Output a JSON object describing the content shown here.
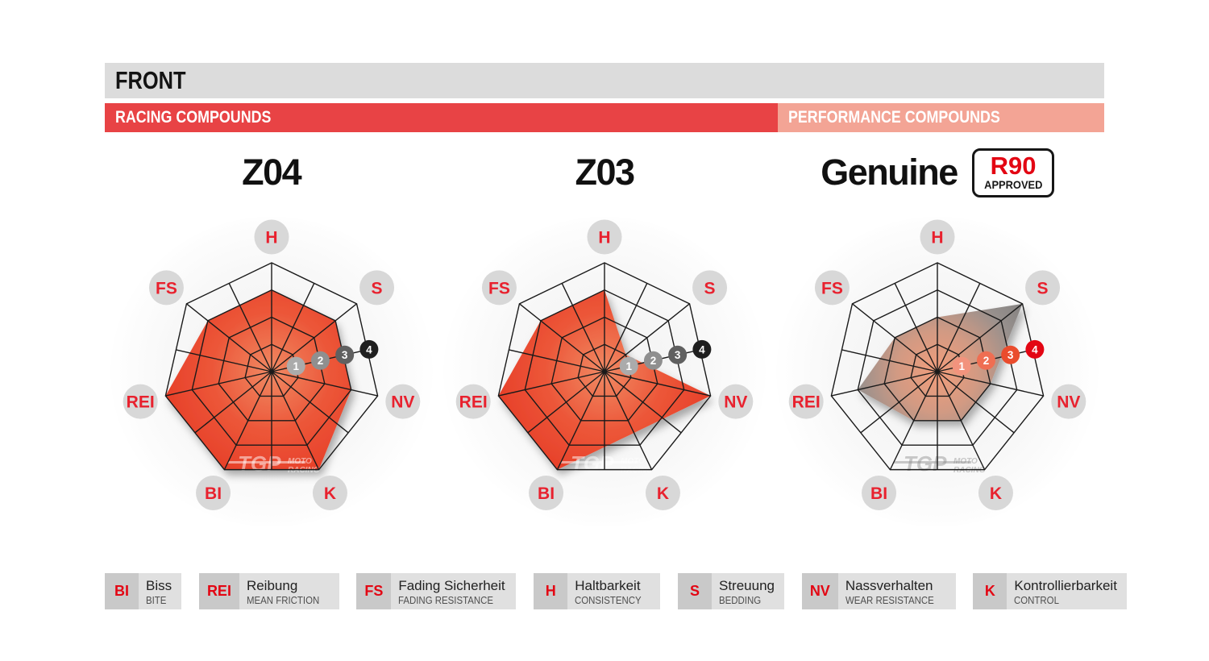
{
  "header": {
    "title": "FRONT"
  },
  "bands": {
    "racing": {
      "label": "RACING COMPOUNDS"
    },
    "performance": {
      "label": "PERFORMANCE COMPOUNDS"
    }
  },
  "badge": {
    "line1": "R90",
    "line2": "APPROVED"
  },
  "watermark": {
    "logo": "TGP",
    "moto": "MOTO",
    "racing": "RACING"
  },
  "colors": {
    "front_bar_bg": "#dcdcdc",
    "front_text": "#131313",
    "racing_bg": "#e84345",
    "performance_bg": "#f3a495",
    "band_text": "#ffffff",
    "badge_red": "#e30613",
    "badge_black": "#161616",
    "grid": "#1a1a1a",
    "label_circle_bg": "#d8d8d8",
    "label_text": "#e8212e",
    "legend_abbr_bg": "#c9c9c9",
    "legend_abbr_text": "#e30613",
    "legend_text_bg": "#e0e0e0"
  },
  "legend": {
    "items": [
      {
        "abbr": "BI",
        "de": "Biss",
        "en": "BITE"
      },
      {
        "abbr": "REI",
        "de": "Reibung",
        "en": "MEAN FRICTION"
      },
      {
        "abbr": "FS",
        "de": "Fading Sicherheit",
        "en": "FADING RESISTANCE"
      },
      {
        "abbr": "H",
        "de": "Haltbarkeit",
        "en": "CONSISTENCY"
      },
      {
        "abbr": "S",
        "de": "Streuung",
        "en": "BEDDING"
      },
      {
        "abbr": "NV",
        "de": "Nassverhalten",
        "en": "WEAR RESISTANCE"
      },
      {
        "abbr": "K",
        "de": "Kontrollierbarkeit",
        "en": "CONTROL"
      }
    ]
  },
  "chart_data": {
    "type": "radar",
    "axes": [
      "H",
      "S",
      "NV",
      "K",
      "BI",
      "REI",
      "FS"
    ],
    "axis_start_angle_deg": 90,
    "scale_min": 0,
    "scale_max": 4,
    "scale_ticks": [
      "1",
      "2",
      "3",
      "4"
    ],
    "grid": "on",
    "rings": 4,
    "charts": [
      {
        "title": "Z04",
        "group": "RACING COMPOUNDS",
        "values": [
          3,
          3,
          3,
          4,
          4,
          4,
          3
        ],
        "fill_stops": [
          "#f08a64",
          "#ec5638",
          "#e63a26"
        ],
        "tick_colors": [
          "#ababab",
          "#8f8f8f",
          "#606060",
          "#1f1f1f"
        ],
        "watermark_color": "rgba(255,255,255,0.5)"
      },
      {
        "title": "Z03",
        "group": "RACING COMPOUNDS",
        "values": [
          3,
          1,
          4,
          2.5,
          4,
          4,
          3
        ],
        "fill_stops": [
          "#f08a64",
          "#ec5638",
          "#e63a26"
        ],
        "tick_colors": [
          "#ababab",
          "#8f8f8f",
          "#606060",
          "#1f1f1f"
        ],
        "watermark_color": "rgba(255,255,255,0.5)"
      },
      {
        "title": "Genuine",
        "group": "PERFORMANCE COMPOUNDS",
        "badge": "R90 APPROVED",
        "values": [
          2,
          4,
          2,
          2,
          2,
          3,
          2
        ],
        "fill_stops": [
          "#f29d7b",
          "#d29a83",
          "#97908d",
          "#7c7c7c"
        ],
        "tick_colors": [
          "#f2937d",
          "#ef6e52",
          "#ea4c2d",
          "#e30613"
        ],
        "watermark_color": "rgba(140,140,140,0.45)"
      }
    ]
  }
}
